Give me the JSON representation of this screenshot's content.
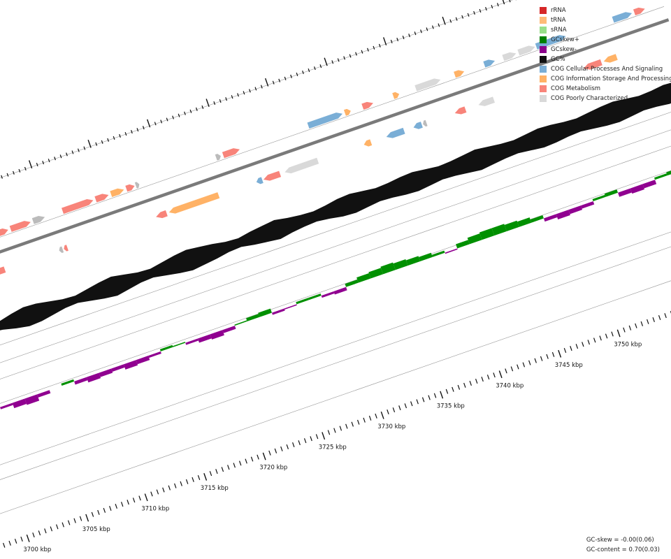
{
  "legend": [
    {
      "label": "rRNA",
      "color": "#d62728"
    },
    {
      "label": "tRNA",
      "color": "#ffbb78"
    },
    {
      "label": "sRNA",
      "color": "#98df8a"
    },
    {
      "label": "GCskew+",
      "color": "#008000"
    },
    {
      "label": "GCskew-",
      "color": "#8b008b"
    },
    {
      "label": "GC%",
      "color": "#111111"
    },
    {
      "label": "COG Cellular Processes And Signaling",
      "color": "#7aaed6"
    },
    {
      "label": "COG Information Storage And Processing",
      "color": "#ffb266"
    },
    {
      "label": "COG Metabolism",
      "color": "#f8847a"
    },
    {
      "label": "COG Poorly Characterized",
      "color": "#d9d9d9"
    }
  ],
  "colors": {
    "backbone": "#7a7a7a",
    "guide": "#999999",
    "gc": "#111111",
    "skew_pos": "#009000",
    "skew_neg": "#900090",
    "unknown_gene": "#bbbbbb"
  },
  "axis": {
    "unit": "kbp",
    "labels": [
      "3700 kbp",
      "3705 kbp",
      "3710 kbp",
      "3715 kbp",
      "3720 kbp",
      "3725 kbp",
      "3730 kbp",
      "3735 kbp",
      "3740 kbp",
      "3745 kbp",
      "3750 kbp"
    ],
    "positions_kbp": [
      3700,
      3705,
      3710,
      3715,
      3720,
      3725,
      3730,
      3735,
      3740,
      3745,
      3750
    ]
  },
  "stats": {
    "gc_skew": "GC-skew = -0.00(0.06)",
    "gc_content": "GC-content = 0.70(0.03)"
  },
  "genes": [
    {
      "start": 3697.2,
      "end": 3699.6,
      "strand": "+",
      "cog": "poorly"
    },
    {
      "start": 3699.8,
      "end": 3701.3,
      "strand": "+",
      "cog": "metabolism"
    },
    {
      "start": 3701.9,
      "end": 3703.0,
      "strand": "-",
      "cog": "metabolism"
    },
    {
      "start": 3703.2,
      "end": 3703.6,
      "strand": "-",
      "cog": "unknown"
    },
    {
      "start": 3703.9,
      "end": 3705.3,
      "strand": "-",
      "cog": "metabolism"
    },
    {
      "start": 3705.8,
      "end": 3706.6,
      "strand": "+",
      "cog": "metabolism"
    },
    {
      "start": 3706.8,
      "end": 3708.5,
      "strand": "+",
      "cog": "metabolism"
    },
    {
      "start": 3708.7,
      "end": 3709.7,
      "strand": "+",
      "cog": "unknown"
    },
    {
      "start": 3709.9,
      "end": 3710.2,
      "strand": "-",
      "cog": "unknown"
    },
    {
      "start": 3710.3,
      "end": 3710.6,
      "strand": "-",
      "cog": "metabolism"
    },
    {
      "start": 3711.2,
      "end": 3713.8,
      "strand": "+",
      "cog": "metabolism"
    },
    {
      "start": 3714.0,
      "end": 3715.1,
      "strand": "+",
      "cog": "metabolism"
    },
    {
      "start": 3715.3,
      "end": 3716.4,
      "strand": "+",
      "cog": "info"
    },
    {
      "start": 3716.6,
      "end": 3717.3,
      "strand": "+",
      "cog": "metabolism"
    },
    {
      "start": 3717.4,
      "end": 3717.7,
      "strand": "+",
      "cog": "unknown"
    },
    {
      "start": 3718.1,
      "end": 3719.0,
      "strand": "-",
      "cog": "metabolism"
    },
    {
      "start": 3719.2,
      "end": 3723.4,
      "strand": "-",
      "cog": "info"
    },
    {
      "start": 3724.2,
      "end": 3724.6,
      "strand": "+",
      "cog": "unknown"
    },
    {
      "start": 3724.8,
      "end": 3726.2,
      "strand": "+",
      "cog": "metabolism"
    },
    {
      "start": 3726.6,
      "end": 3727.1,
      "strand": "-",
      "cog": "cellular"
    },
    {
      "start": 3727.2,
      "end": 3728.6,
      "strand": "-",
      "cog": "metabolism"
    },
    {
      "start": 3729.0,
      "end": 3731.8,
      "strand": "-",
      "cog": "poorly"
    },
    {
      "start": 3732.0,
      "end": 3734.9,
      "strand": "+",
      "cog": "cellular"
    },
    {
      "start": 3735.1,
      "end": 3735.6,
      "strand": "+",
      "cog": "info"
    },
    {
      "start": 3735.7,
      "end": 3736.3,
      "strand": "-",
      "cog": "info"
    },
    {
      "start": 3736.6,
      "end": 3737.5,
      "strand": "+",
      "cog": "metabolism"
    },
    {
      "start": 3737.6,
      "end": 3739.1,
      "strand": "-",
      "cog": "cellular"
    },
    {
      "start": 3739.2,
      "end": 3739.7,
      "strand": "+",
      "cog": "info"
    },
    {
      "start": 3739.9,
      "end": 3740.6,
      "strand": "-",
      "cog": "cellular"
    },
    {
      "start": 3740.7,
      "end": 3741.0,
      "strand": "-",
      "cog": "unknown"
    },
    {
      "start": 3741.1,
      "end": 3743.2,
      "strand": "+",
      "cog": "poorly"
    },
    {
      "start": 3743.4,
      "end": 3744.3,
      "strand": "-",
      "cog": "metabolism"
    },
    {
      "start": 3744.4,
      "end": 3745.2,
      "strand": "+",
      "cog": "info"
    },
    {
      "start": 3745.4,
      "end": 3746.7,
      "strand": "-",
      "cog": "poorly"
    },
    {
      "start": 3746.9,
      "end": 3747.8,
      "strand": "+",
      "cog": "cellular"
    },
    {
      "start": 3748.5,
      "end": 3749.6,
      "strand": "+",
      "cog": "poorly"
    },
    {
      "start": 3749.8,
      "end": 3751.2,
      "strand": "+",
      "cog": "poorly"
    },
    {
      "start": 3751.3,
      "end": 3753.8,
      "strand": "+",
      "cog": "cellular"
    },
    {
      "start": 3754.3,
      "end": 3755.8,
      "strand": "-",
      "cog": "metabolism"
    },
    {
      "start": 3756.0,
      "end": 3757.1,
      "strand": "-",
      "cog": "info"
    },
    {
      "start": 3757.8,
      "end": 3759.4,
      "strand": "+",
      "cog": "cellular"
    },
    {
      "start": 3759.6,
      "end": 3760.5,
      "strand": "+",
      "cog": "metabolism"
    }
  ],
  "gc_profile": [
    0.62,
    0.64,
    0.66,
    0.7,
    0.72,
    0.7,
    0.68,
    0.66,
    0.64,
    0.66,
    0.7,
    0.73,
    0.72,
    0.69,
    0.66,
    0.65,
    0.68,
    0.71,
    0.73,
    0.7,
    0.67,
    0.66,
    0.69,
    0.72,
    0.74,
    0.72,
    0.7,
    0.67,
    0.66,
    0.69,
    0.71,
    0.73,
    0.7,
    0.68,
    0.67,
    0.69,
    0.72,
    0.73,
    0.71,
    0.69,
    0.7,
    0.72,
    0.73,
    0.71,
    0.69,
    0.7,
    0.72,
    0.74,
    0.72,
    0.7,
    0.69,
    0.71,
    0.73,
    0.72,
    0.7,
    0.69,
    0.71,
    0.73,
    0.74,
    0.72,
    0.7,
    0.71,
    0.73,
    0.72,
    0.71
  ],
  "skew_profile": [
    0.03,
    -0.04,
    -0.06,
    -0.05,
    -0.03,
    0.01,
    0.02,
    -0.02,
    -0.05,
    -0.06,
    -0.03,
    0.0,
    0.02,
    -0.03,
    -0.05,
    -0.04,
    -0.03,
    -0.05,
    -0.04,
    -0.02,
    0.02,
    0.01,
    -0.02,
    -0.04,
    -0.05,
    -0.03,
    0.01,
    0.03,
    0.04,
    -0.02,
    -0.01,
    0.02,
    0.02,
    -0.02,
    -0.03,
    0.03,
    0.05,
    0.06,
    0.07,
    0.06,
    0.05,
    0.04,
    0.02,
    -0.01,
    0.04,
    0.06,
    0.07,
    0.07,
    0.06,
    0.05,
    0.03,
    -0.03,
    -0.05,
    -0.04,
    -0.03,
    0.02,
    0.03,
    -0.04,
    -0.05,
    -0.04,
    0.02,
    0.03,
    -0.03,
    -0.02,
    0.01
  ]
}
